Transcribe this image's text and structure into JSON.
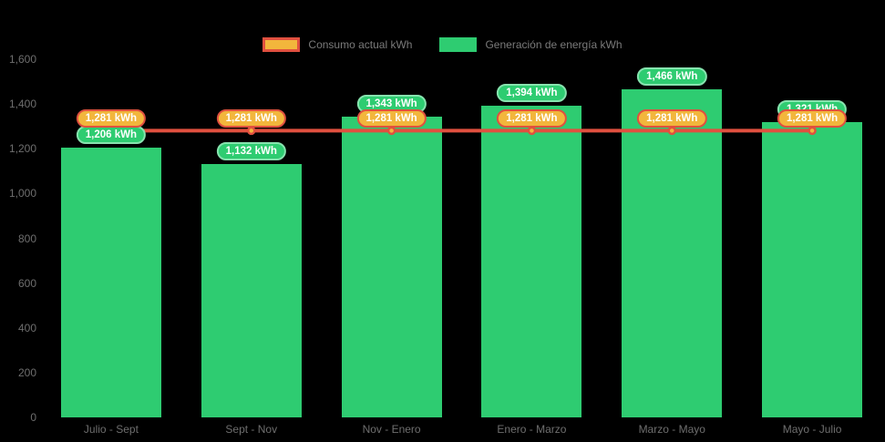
{
  "chart_data": {
    "type": "bar",
    "title": "",
    "categories": [
      "Julio - Sept",
      "Sept - Nov",
      "Nov - Enero",
      "Enero - Marzo",
      "Marzo - Mayo",
      "Mayo - Julio"
    ],
    "series": [
      {
        "name": "Consumo actual kWh",
        "type": "line",
        "values": [
          1281,
          1281,
          1281,
          1281,
          1281,
          1281
        ],
        "point_labels": [
          "1,281 kWh",
          "1,281 kWh",
          "1,281 kWh",
          "1,281 kWh",
          "1,281 kWh",
          "1,281 kWh"
        ],
        "color": "#e0503f",
        "marker_fill": "#f2b63c"
      },
      {
        "name": "Generación de energía kWh",
        "type": "bar",
        "values": [
          1206,
          1132,
          1343,
          1394,
          1466,
          1321
        ],
        "point_labels": [
          "1,206 kWh",
          "1,132 kWh",
          "1,343 kWh",
          "1,394 kWh",
          "1,466 kWh",
          "1,321 kWh"
        ],
        "color": "#2ecc71"
      }
    ],
    "ylim": [
      0,
      1600
    ],
    "ytick_step": 200,
    "ytick_labels": [
      "0",
      "200",
      "400",
      "600",
      "800",
      "1,000",
      "1,200",
      "1,400",
      "1,600"
    ],
    "grid": false,
    "legend_position": "top"
  },
  "legend": {
    "items": [
      {
        "label": "Consumo actual kWh",
        "swatch_fill": "#f2b63c",
        "swatch_border": "#e0503f"
      },
      {
        "label": "Generación de energía kWh",
        "swatch_fill": "#2ecc71",
        "swatch_border": "#2ecc71"
      }
    ]
  },
  "colors": {
    "background": "#000000",
    "axis_text": "#6e6e6e",
    "legend_text": "#7a7a7a",
    "bar_fill": "#2ecc71",
    "line_stroke": "#e0503f",
    "marker_fill": "#f2b63c",
    "badge_text": "#ffffff",
    "badge_generation_fill": "#2ecc71",
    "badge_generation_border": "#86e3ae",
    "badge_consumption_fill": "#f2b63c",
    "badge_consumption_border": "#e0503f"
  }
}
